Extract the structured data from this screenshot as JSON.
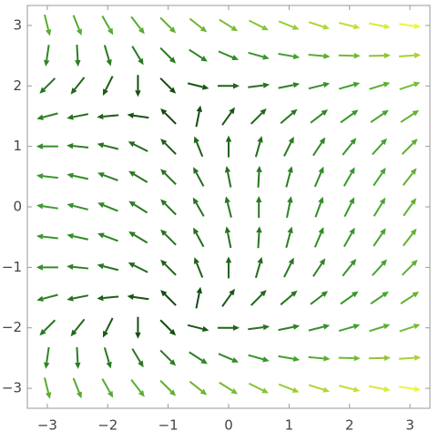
{
  "chart_data": {
    "type": "vector",
    "x": [
      -3,
      -2.5,
      -2,
      -1.5,
      -1,
      -0.5,
      0,
      0.5,
      1,
      1.5,
      2,
      2.5,
      3
    ],
    "y": [
      3,
      2.5,
      2,
      1.5,
      1,
      0.5,
      0,
      -0.5,
      -1,
      -1.5,
      -2,
      -2.5,
      -3
    ],
    "u": [
      [
        2,
        3,
        4,
        5,
        6,
        7,
        8,
        9,
        10,
        11,
        12,
        13,
        14
      ],
      [
        -0.75,
        0.25,
        1.25,
        2.25,
        3.25,
        4.25,
        5.25,
        6.25,
        7.25,
        8.25,
        9.25,
        10.25,
        11.25
      ],
      [
        -3,
        -2,
        -1,
        0,
        1,
        2,
        3,
        4,
        5,
        6,
        7,
        8,
        9
      ],
      [
        -4.75,
        -3.75,
        -2.75,
        -1.75,
        -0.75,
        0.25,
        1.25,
        2.25,
        3.25,
        4.25,
        5.25,
        6.25,
        7.25
      ],
      [
        -6,
        -5,
        -4,
        -3,
        -2,
        -1,
        0,
        1,
        2,
        3,
        4,
        5,
        6
      ],
      [
        -6.75,
        -5.75,
        -4.75,
        -3.75,
        -2.75,
        -1.75,
        -0.75,
        0.25,
        1.25,
        2.25,
        3.25,
        4.25,
        5.25
      ],
      [
        -7,
        -6,
        -5,
        -4,
        -3,
        -2,
        -1,
        0,
        1,
        2,
        3,
        4,
        5
      ],
      [
        -6.75,
        -5.75,
        -4.75,
        -3.75,
        -2.75,
        -1.75,
        -0.75,
        0.25,
        1.25,
        2.25,
        3.25,
        4.25,
        5.25
      ],
      [
        -6,
        -5,
        -4,
        -3,
        -2,
        -1,
        0,
        1,
        2,
        3,
        4,
        5,
        6
      ],
      [
        -4.75,
        -3.75,
        -2.75,
        -1.75,
        -0.75,
        0.25,
        1.25,
        2.25,
        3.25,
        4.25,
        5.25,
        6.25,
        7.25
      ],
      [
        -3,
        -2,
        -1,
        0,
        1,
        2,
        3,
        4,
        5,
        6,
        7,
        8,
        9
      ],
      [
        -0.75,
        0.25,
        1.25,
        2.25,
        3.25,
        4.25,
        5.25,
        6.25,
        7.25,
        8.25,
        9.25,
        10.25,
        11.25
      ],
      [
        2,
        3,
        4,
        5,
        6,
        7,
        8,
        9,
        10,
        11,
        12,
        13,
        14
      ]
    ],
    "v": [
      [
        -8,
        -7.5,
        -7,
        -6.5,
        -6,
        -5.5,
        -5,
        -4.5,
        -4,
        -3.5,
        -3,
        -2.5,
        -2
      ],
      [
        -5.25,
        -4.75,
        -4.25,
        -3.75,
        -3.25,
        -2.75,
        -2.25,
        -1.75,
        -1.25,
        -0.75,
        -0.25,
        0.25,
        0.75
      ],
      [
        -3,
        -2.5,
        -2,
        -1.5,
        -1,
        -0.5,
        0,
        0.5,
        1,
        1.5,
        2,
        2.5,
        3
      ],
      [
        -1.25,
        -0.75,
        -0.25,
        0.25,
        0.75,
        1.25,
        1.75,
        2.25,
        2.75,
        3.25,
        3.75,
        4.25,
        4.75
      ],
      [
        0,
        0.5,
        1,
        1.5,
        2,
        2.5,
        3,
        3.5,
        4,
        4.5,
        5,
        5.5,
        6
      ],
      [
        0.75,
        1.25,
        1.75,
        2.25,
        2.75,
        3.25,
        3.75,
        4.25,
        4.75,
        5.25,
        5.75,
        6.25,
        6.75
      ],
      [
        1,
        1.5,
        2,
        2.5,
        3,
        3.5,
        4,
        4.5,
        5,
        5.5,
        6,
        6.5,
        7
      ],
      [
        0.75,
        1.25,
        1.75,
        2.25,
        2.75,
        3.25,
        3.75,
        4.25,
        4.75,
        5.25,
        5.75,
        6.25,
        6.75
      ],
      [
        0,
        0.5,
        1,
        1.5,
        2,
        2.5,
        3,
        3.5,
        4,
        4.5,
        5,
        5.5,
        6
      ],
      [
        -1.25,
        -0.75,
        -0.25,
        0.25,
        0.75,
        1.25,
        1.75,
        2.25,
        2.75,
        3.25,
        3.75,
        4.25,
        4.75
      ],
      [
        -3,
        -2.5,
        -2,
        -1.5,
        -1,
        -0.5,
        0,
        0.5,
        1,
        1.5,
        2,
        2.5,
        3
      ],
      [
        -5.25,
        -4.75,
        -4.25,
        -3.75,
        -3.25,
        -2.75,
        -2.25,
        -1.75,
        -1.25,
        -0.75,
        -0.25,
        0.25,
        0.75
      ],
      [
        -8,
        -7.5,
        -7,
        -6.5,
        -6,
        -5.5,
        -5,
        -4.5,
        -4,
        -3.5,
        -3,
        -2.5,
        -2
      ]
    ],
    "colormap": [
      "#0a3a0a",
      "#3c9e2e",
      "#f0f53c"
    ],
    "xlim": [
      -3.33,
      3.33
    ],
    "ylim": [
      -3.33,
      3.33
    ],
    "xticks": [
      {
        "value": -3,
        "label": "−3"
      },
      {
        "value": -2,
        "label": "−2"
      },
      {
        "value": -1,
        "label": "−1"
      },
      0,
      1,
      2,
      3
    ],
    "yticks": [
      {
        "value": -3,
        "label": "−3"
      },
      {
        "value": -2,
        "label": "−2"
      },
      {
        "value": -1,
        "label": "−1"
      },
      0,
      1,
      2,
      3
    ]
  }
}
